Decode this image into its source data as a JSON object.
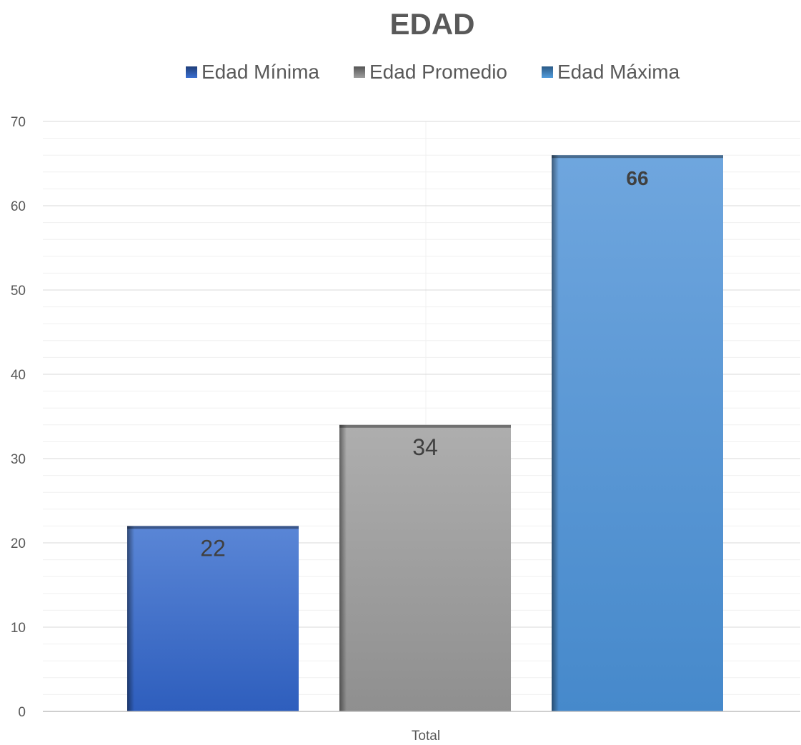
{
  "chart_data": {
    "type": "bar",
    "title": "EDAD",
    "categories": [
      "Total"
    ],
    "series": [
      {
        "name": "Edad Mínima",
        "values": [
          22
        ],
        "color": "#3A6FD0"
      },
      {
        "name": "Edad Promedio",
        "values": [
          34
        ],
        "color": "#9E9E9E"
      },
      {
        "name": "Edad Máxima",
        "values": [
          66
        ],
        "color": "#529CDC"
      }
    ],
    "y_ticks": [
      "0",
      "10",
      "20",
      "30",
      "40",
      "50",
      "60",
      "70"
    ],
    "ylim": [
      0,
      70
    ],
    "legend_position": "top",
    "grid": true,
    "minor_grid": true,
    "data_label_colors": [
      "#404040",
      "#404040",
      "#404040"
    ]
  }
}
